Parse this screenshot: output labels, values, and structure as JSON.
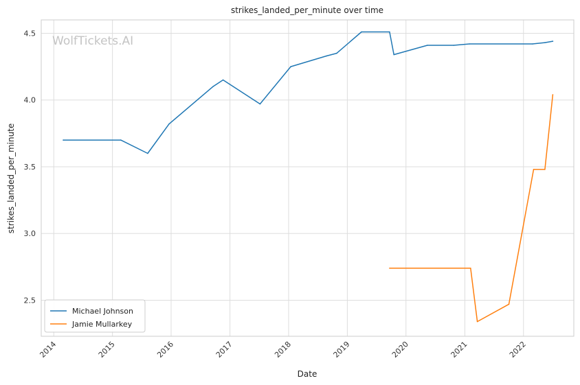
{
  "chart_data": {
    "type": "line",
    "title": "strikes_landed_per_minute over time",
    "xlabel": "Date",
    "ylabel": "strikes_landed_per_minute",
    "watermark": "WolfTickets.AI",
    "x_ticks": [
      "2014",
      "2015",
      "2016",
      "2017",
      "2018",
      "2019",
      "2020",
      "2021",
      "2022"
    ],
    "y_ticks": [
      "2.5",
      "3.0",
      "3.5",
      "4.0",
      "4.5"
    ],
    "xlim": [
      "2013-10-15",
      "2022-11-10"
    ],
    "ylim": [
      2.23,
      4.6
    ],
    "grid": true,
    "legend_position": "lower-left",
    "colors": {
      "Michael Johnson": "#1f77b4",
      "Jamie Mullarkey": "#ff7f0e"
    },
    "series": [
      {
        "name": "Michael Johnson",
        "color": "#1f77b4",
        "points": [
          {
            "x": "2014-03-01",
            "y": 3.7
          },
          {
            "x": "2015-02-22",
            "y": 3.7
          },
          {
            "x": "2015-08-08",
            "y": 3.6
          },
          {
            "x": "2015-12-19",
            "y": 3.82
          },
          {
            "x": "2016-09-17",
            "y": 4.1
          },
          {
            "x": "2016-11-19",
            "y": 4.15
          },
          {
            "x": "2017-07-07",
            "y": 3.97
          },
          {
            "x": "2018-01-14",
            "y": 4.25
          },
          {
            "x": "2018-08-25",
            "y": 4.33
          },
          {
            "x": "2018-10-27",
            "y": 4.35
          },
          {
            "x": "2019-03-30",
            "y": 4.51
          },
          {
            "x": "2019-09-21",
            "y": 4.51
          },
          {
            "x": "2019-10-18",
            "y": 4.34
          },
          {
            "x": "2020-05-13",
            "y": 4.41
          },
          {
            "x": "2020-10-24",
            "y": 4.41
          },
          {
            "x": "2021-01-30",
            "y": 4.42
          },
          {
            "x": "2022-02-26",
            "y": 4.42
          },
          {
            "x": "2022-05-14",
            "y": 4.43
          },
          {
            "x": "2022-07-02",
            "y": 4.44
          }
        ]
      },
      {
        "name": "Jamie Mullarkey",
        "color": "#ff7f0e",
        "points": [
          {
            "x": "2019-09-21",
            "y": 2.74
          },
          {
            "x": "2021-02-06",
            "y": 2.74
          },
          {
            "x": "2021-03-20",
            "y": 2.34
          },
          {
            "x": "2021-10-02",
            "y": 2.47
          },
          {
            "x": "2022-03-05",
            "y": 3.48
          },
          {
            "x": "2022-05-14",
            "y": 3.48
          },
          {
            "x": "2022-07-02",
            "y": 4.04
          }
        ]
      }
    ]
  }
}
